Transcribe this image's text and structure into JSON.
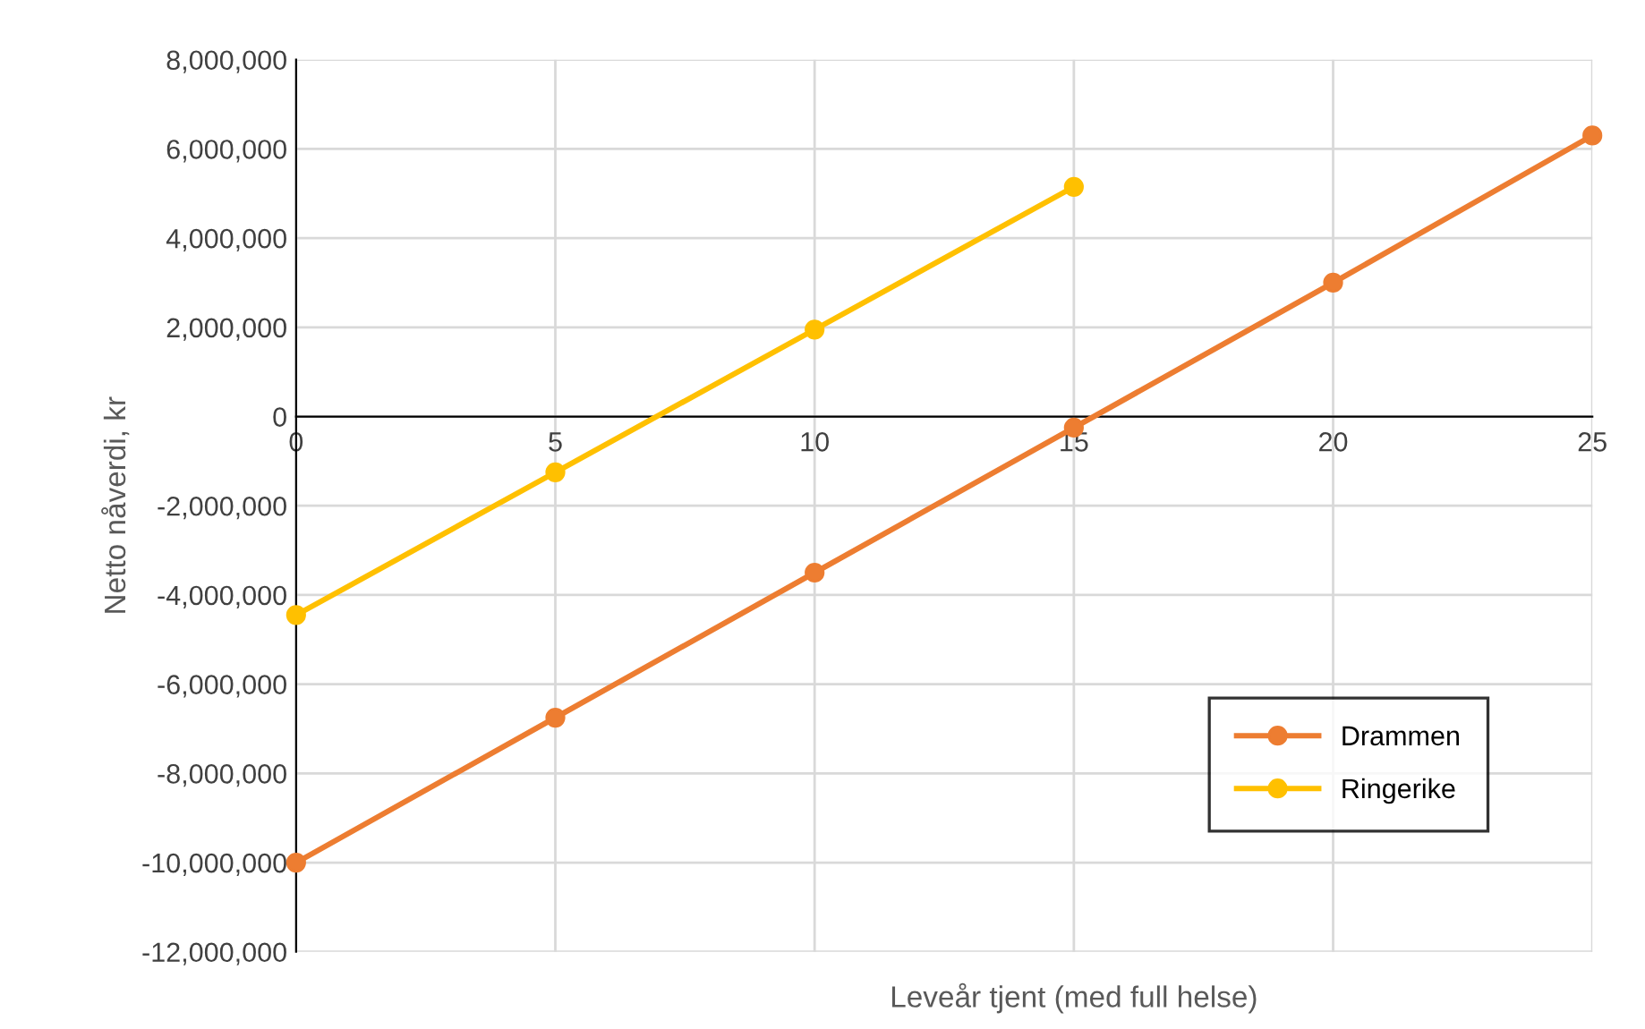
{
  "chart_data": {
    "type": "line",
    "xlabel": "Leveår tjent (med full helse)",
    "ylabel": "Netto nåverdi, kr",
    "series": [
      {
        "name": "Drammen",
        "color": "#ed7d31",
        "x": [
          0,
          5,
          10,
          15,
          20,
          25
        ],
        "values": [
          -10000000,
          -6750000,
          -3500000,
          -250000,
          3000000,
          6300000
        ]
      },
      {
        "name": "Ringerike",
        "color": "#ffc000",
        "x": [
          0,
          5,
          10,
          15
        ],
        "values": [
          -4450000,
          -1250000,
          1950000,
          5150000
        ]
      }
    ],
    "xlim": [
      0,
      25
    ],
    "xticks": [
      0,
      5,
      10,
      15,
      20,
      25
    ],
    "ylim": [
      -12000000,
      8000000
    ],
    "yticks": [
      {
        "value": -12000000,
        "label": "-12,000,000"
      },
      {
        "value": -10000000,
        "label": "-10,000,000"
      },
      {
        "value": -8000000,
        "label": "-8,000,000"
      },
      {
        "value": -6000000,
        "label": "-6,000,000"
      },
      {
        "value": -4000000,
        "label": "-4,000,000"
      },
      {
        "value": -2000000,
        "label": "-2,000,000"
      },
      0,
      {
        "value": 2000000,
        "label": "2,000,000"
      },
      {
        "value": 4000000,
        "label": "4,000,000"
      },
      {
        "value": 6000000,
        "label": "6,000,000"
      },
      {
        "value": 8000000,
        "label": "8,000,000"
      }
    ],
    "grid": true,
    "legend": "bottom right",
    "marker": "circle",
    "line_style": "solid"
  }
}
